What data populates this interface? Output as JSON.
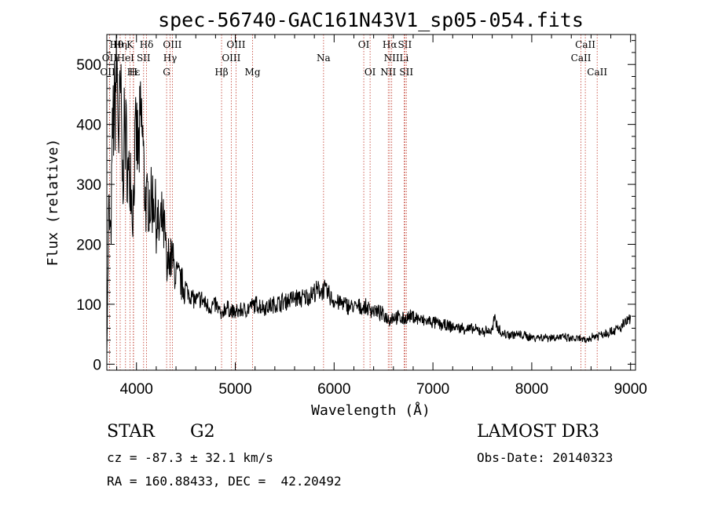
{
  "chart_data": {
    "type": "line",
    "title": "spec-56740-GAC161N43V1_sp05-054.fits",
    "xlabel": "Wavelength (Å)",
    "ylabel": "Flux (relative)",
    "xlim": [
      3700,
      9050
    ],
    "ylim": [
      -10,
      550
    ],
    "xticks": [
      4000,
      5000,
      6000,
      7000,
      8000,
      9000
    ],
    "yticks": [
      0,
      100,
      200,
      300,
      400,
      500
    ],
    "xtick_labels": [
      "4000",
      "5000",
      "6000",
      "7000",
      "8000",
      "9000"
    ],
    "ytick_labels": [
      "0",
      "100",
      "200",
      "300",
      "400",
      "500"
    ],
    "series": [
      {
        "name": "flux",
        "x": [
          3700,
          3720,
          3740,
          3760,
          3780,
          3800,
          3820,
          3840,
          3860,
          3880,
          3900,
          3920,
          3940,
          3960,
          3970,
          3980,
          4000,
          4020,
          4040,
          4060,
          4080,
          4101,
          4120,
          4150,
          4180,
          4200,
          4230,
          4260,
          4290,
          4310,
          4330,
          4340,
          4360,
          4380,
          4400,
          4450,
          4500,
          4550,
          4600,
          4650,
          4700,
          4750,
          4800,
          4850,
          4861,
          4880,
          4900,
          4950,
          5000,
          5050,
          5100,
          5150,
          5200,
          5300,
          5400,
          5500,
          5600,
          5700,
          5800,
          5890,
          5950,
          6000,
          6100,
          6200,
          6300,
          6400,
          6500,
          6563,
          6600,
          6700,
          6800,
          6900,
          7000,
          7100,
          7200,
          7300,
          7400,
          7500,
          7600,
          7620,
          7700,
          7800,
          7900,
          8000,
          8100,
          8200,
          8300,
          8400,
          8500,
          8542,
          8600,
          8700,
          8800,
          8900,
          8950,
          9000
        ],
        "y": [
          20,
          260,
          200,
          400,
          430,
          500,
          380,
          450,
          300,
          400,
          360,
          300,
          330,
          250,
          280,
          340,
          380,
          350,
          400,
          390,
          300,
          260,
          280,
          270,
          280,
          240,
          220,
          240,
          210,
          140,
          200,
          170,
          180,
          160,
          150,
          135,
          125,
          115,
          105,
          110,
          100,
          95,
          100,
          85,
          75,
          90,
          95,
          90,
          85,
          90,
          90,
          95,
          100,
          95,
          100,
          105,
          110,
          110,
          120,
          125,
          115,
          105,
          100,
          95,
          95,
          90,
          82,
          75,
          80,
          75,
          80,
          72,
          70,
          65,
          62,
          60,
          58,
          55,
          55,
          75,
          50,
          50,
          48,
          45,
          45,
          45,
          45,
          42,
          42,
          38,
          45,
          50,
          55,
          60,
          70,
          75
        ]
      }
    ],
    "spectral_lines": [
      {
        "label": "Hθ",
        "wavelength": 3798,
        "row": 0
      },
      {
        "label": "Hη",
        "wavelength": 3835,
        "row": 0
      },
      {
        "label": "K",
        "wavelength": 3934,
        "row": 0
      },
      {
        "label": "Hδ",
        "wavelength": 4102,
        "row": 0
      },
      {
        "label": "OIII",
        "wavelength": 4363,
        "row": 0
      },
      {
        "label": "OIII",
        "wavelength": 5007,
        "row": 0
      },
      {
        "label": "OI",
        "wavelength": 6300,
        "row": 0
      },
      {
        "label": "Hα",
        "wavelength": 6563,
        "row": 0
      },
      {
        "label": "SII",
        "wavelength": 6716,
        "row": 0
      },
      {
        "label": "CaII",
        "wavelength": 8542,
        "row": 0
      },
      {
        "label": "OII",
        "wavelength": 3727,
        "row": 1
      },
      {
        "label": "HeI",
        "wavelength": 3889,
        "row": 1
      },
      {
        "label": "SII",
        "wavelength": 4072,
        "row": 1
      },
      {
        "label": "Hγ",
        "wavelength": 4340,
        "row": 1
      },
      {
        "label": "OIII",
        "wavelength": 4959,
        "row": 1
      },
      {
        "label": "Na",
        "wavelength": 5893,
        "row": 1
      },
      {
        "label": "NII",
        "wavelength": 6583,
        "row": 1
      },
      {
        "label": "Li",
        "wavelength": 6708,
        "row": 1
      },
      {
        "label": "CaII",
        "wavelength": 8498,
        "row": 1
      },
      {
        "label": "OIII",
        "wavelength": 3727,
        "row": 2
      },
      {
        "label": "Hε",
        "wavelength": 3970,
        "row": 2
      },
      {
        "label": "H",
        "wavelength": 3968,
        "row": 2
      },
      {
        "label": "G",
        "wavelength": 4305,
        "row": 2
      },
      {
        "label": "Hβ",
        "wavelength": 4861,
        "row": 2
      },
      {
        "label": "Mg",
        "wavelength": 5175,
        "row": 2
      },
      {
        "label": "OI",
        "wavelength": 6364,
        "row": 2
      },
      {
        "label": "NII",
        "wavelength": 6548,
        "row": 2
      },
      {
        "label": "SII",
        "wavelength": 6731,
        "row": 2
      },
      {
        "label": "CaII",
        "wavelength": 8662,
        "row": 2
      }
    ]
  },
  "info": {
    "class": "STAR",
    "subclass": "G2",
    "survey": "LAMOST DR3",
    "cz": "cz = -87.3 ± 32.1 km/s",
    "obs_date": "Obs-Date: 20140323",
    "coords": "RA = 160.88433, DEC =  42.20492"
  }
}
